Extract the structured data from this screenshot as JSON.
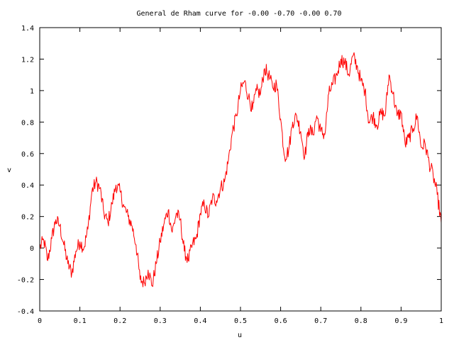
{
  "chart_data": {
    "type": "line",
    "title": "General de Rham curve for -0.00 -0.70 -0.00 0.70",
    "xlabel": "u",
    "ylabel": "v",
    "xlim": [
      0,
      1
    ],
    "ylim": [
      -0.4,
      1.4
    ],
    "xticks": [
      "0",
      "0.1",
      "0.2",
      "0.3",
      "0.4",
      "0.5",
      "0.6",
      "0.7",
      "0.8",
      "0.9",
      "1"
    ],
    "yticks": [
      "-0.4",
      "-0.2",
      "0",
      "0.2",
      "0.4",
      "0.6",
      "0.8",
      "1",
      "1.2",
      "1.4"
    ],
    "grid": false,
    "legend": "none",
    "series": [
      {
        "color": "#ff0000",
        "x": [
          0,
          0.01,
          0.02,
          0.03,
          0.04,
          0.05,
          0.06,
          0.07,
          0.08,
          0.09,
          0.1,
          0.11,
          0.12,
          0.13,
          0.14,
          0.15,
          0.16,
          0.17,
          0.18,
          0.19,
          0.2,
          0.21,
          0.22,
          0.23,
          0.24,
          0.25,
          0.26,
          0.27,
          0.28,
          0.29,
          0.3,
          0.31,
          0.32,
          0.33,
          0.34,
          0.35,
          0.36,
          0.37,
          0.38,
          0.39,
          0.4,
          0.41,
          0.42,
          0.43,
          0.44,
          0.45,
          0.46,
          0.47,
          0.48,
          0.49,
          0.5,
          0.51,
          0.52,
          0.53,
          0.54,
          0.55,
          0.56,
          0.57,
          0.58,
          0.59,
          0.6,
          0.61,
          0.62,
          0.63,
          0.64,
          0.65,
          0.66,
          0.67,
          0.68,
          0.69,
          0.7,
          0.71,
          0.72,
          0.73,
          0.74,
          0.75,
          0.76,
          0.77,
          0.78,
          0.79,
          0.8,
          0.81,
          0.82,
          0.83,
          0.84,
          0.85,
          0.86,
          0.87,
          0.88,
          0.89,
          0.9,
          0.91,
          0.92,
          0.93,
          0.94,
          0.95,
          0.96,
          0.97,
          0.98,
          0.99,
          1
        ],
        "y": [
          0,
          0.05,
          -0.08,
          0.06,
          0.18,
          0.14,
          0.02,
          -0.1,
          -0.16,
          -0.02,
          0.04,
          0.0,
          0.12,
          0.36,
          0.42,
          0.38,
          0.22,
          0.16,
          0.28,
          0.4,
          0.36,
          0.26,
          0.2,
          0.14,
          0.02,
          -0.2,
          -0.22,
          -0.14,
          -0.24,
          -0.1,
          0.04,
          0.16,
          0.24,
          0.1,
          0.22,
          0.18,
          -0.02,
          -0.08,
          0.02,
          0.06,
          0.22,
          0.28,
          0.2,
          0.32,
          0.3,
          0.38,
          0.42,
          0.56,
          0.74,
          0.84,
          1.0,
          1.06,
          0.96,
          0.88,
          1.0,
          0.98,
          1.14,
          1.1,
          1.02,
          1.04,
          0.82,
          0.58,
          0.62,
          0.8,
          0.84,
          0.74,
          0.58,
          0.76,
          0.72,
          0.84,
          0.74,
          0.72,
          0.98,
          1.04,
          1.1,
          1.2,
          1.18,
          1.1,
          1.22,
          1.16,
          1.06,
          1.0,
          0.8,
          0.84,
          0.78,
          0.86,
          0.84,
          1.1,
          0.98,
          0.84,
          0.86,
          0.66,
          0.7,
          0.76,
          0.84,
          0.64,
          0.66,
          0.54,
          0.46,
          0.34,
          0.16
        ]
      }
    ]
  }
}
